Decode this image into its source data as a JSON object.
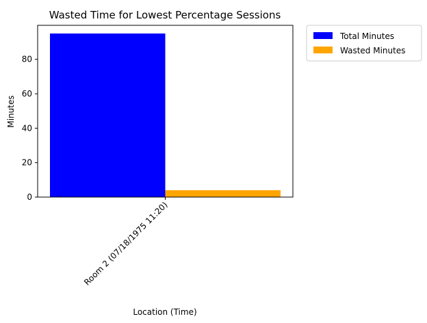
{
  "chart_data": {
    "type": "bar",
    "title": "Wasted Time for Lowest Percentage Sessions",
    "xlabel": "Location (Time)",
    "ylabel": "Minutes",
    "categories": [
      "Room 2 (07/18/1975 11:20)"
    ],
    "series": [
      {
        "name": "Total Minutes",
        "values": [
          95
        ],
        "color": "#0000ff"
      },
      {
        "name": "Wasted Minutes",
        "values": [
          4
        ],
        "color": "#ffa500"
      }
    ],
    "ylim": [
      0,
      99.75
    ],
    "yticks": [
      0,
      20,
      40,
      60,
      80
    ],
    "ytick_labels": [
      "0",
      "20",
      "40",
      "60",
      "80"
    ],
    "grid": false,
    "legend_position": "outside-top-right"
  }
}
